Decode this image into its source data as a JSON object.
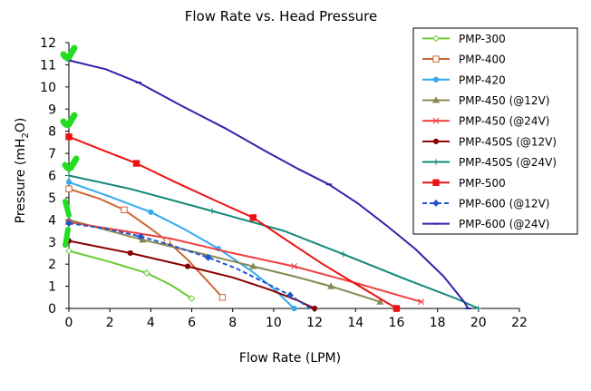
{
  "chart_data": {
    "type": "line",
    "title": "Flow Rate vs. Head Pressure",
    "xlabel": "Flow Rate (LPM)",
    "ylabel_main": "Pressure (mH",
    "ylabel_sub": "2",
    "ylabel_tail": "O)",
    "xlim": [
      0,
      22
    ],
    "ylim": [
      0,
      12
    ],
    "xticks": [
      "0",
      "2",
      "4",
      "6",
      "8",
      "10",
      "12",
      "14",
      "16",
      "18",
      "20",
      "22"
    ],
    "yticks": [
      "0",
      "1",
      "2",
      "3",
      "4",
      "5",
      "6",
      "7",
      "8",
      "9",
      "10",
      "11",
      "12"
    ],
    "grid": false,
    "legend_position": "right",
    "series": [
      {
        "name": "PMP-300",
        "color": "#66CC33",
        "marker": "diamond-open",
        "dashed": false,
        "points": [
          [
            0.0,
            2.6
          ],
          [
            2.0,
            2.1
          ],
          [
            3.8,
            1.6
          ],
          [
            5.0,
            1.05
          ],
          [
            6.0,
            0.45
          ]
        ],
        "marked": [
          0,
          2,
          4
        ]
      },
      {
        "name": "PMP-400",
        "color": "#CC6633",
        "marker": "square-open",
        "dashed": false,
        "points": [
          [
            0.0,
            5.4
          ],
          [
            1.5,
            4.95
          ],
          [
            2.7,
            4.45
          ],
          [
            4.0,
            3.6
          ],
          [
            4.8,
            3.05
          ],
          [
            5.8,
            2.2
          ],
          [
            6.6,
            1.4
          ],
          [
            7.1,
            0.9
          ],
          [
            7.5,
            0.5
          ]
        ],
        "marked": [
          0,
          2,
          4,
          8
        ]
      },
      {
        "name": "PMP-420",
        "color": "#33AAEE",
        "marker": "circle",
        "dashed": false,
        "points": [
          [
            0.0,
            5.7
          ],
          [
            2.0,
            5.05
          ],
          [
            4.0,
            4.35
          ],
          [
            5.6,
            3.6
          ],
          [
            7.3,
            2.7
          ],
          [
            8.9,
            1.7
          ],
          [
            10.0,
            0.9
          ],
          [
            10.6,
            0.35
          ],
          [
            11.0,
            0.0
          ]
        ],
        "marked": [
          0,
          2,
          4,
          8
        ]
      },
      {
        "name": "PMP-450 (@12V)",
        "color": "#888855",
        "marker": "triangle",
        "dashed": false,
        "points": [
          [
            0.0,
            4.0
          ],
          [
            3.6,
            3.1
          ],
          [
            6.8,
            2.4
          ],
          [
            9.0,
            1.9
          ],
          [
            11.0,
            1.45
          ],
          [
            12.8,
            1.0
          ],
          [
            15.2,
            0.3
          ]
        ],
        "marked": [
          0,
          1,
          3,
          5,
          6
        ]
      },
      {
        "name": "PMP-450 (@24V)",
        "color": "#F04040",
        "marker": "star",
        "dashed": false,
        "points": [
          [
            0.0,
            3.9
          ],
          [
            5.0,
            3.15
          ],
          [
            8.0,
            2.5
          ],
          [
            11.0,
            1.9
          ],
          [
            14.0,
            1.15
          ],
          [
            17.2,
            0.3
          ]
        ],
        "marked": [
          0,
          3,
          5
        ]
      },
      {
        "name": "PMP-450S (@12V)",
        "color": "#880000",
        "marker": "circle",
        "dashed": false,
        "points": [
          [
            0.0,
            3.05
          ],
          [
            3.0,
            2.5
          ],
          [
            5.8,
            1.9
          ],
          [
            8.0,
            1.4
          ],
          [
            9.8,
            0.85
          ],
          [
            11.2,
            0.35
          ],
          [
            12.0,
            0.0
          ]
        ],
        "marked": [
          0,
          1,
          2,
          6
        ]
      },
      {
        "name": "PMP-450S (@24V)",
        "color": "#118877",
        "marker": "plus",
        "dashed": false,
        "points": [
          [
            0.0,
            6.0
          ],
          [
            3.0,
            5.4
          ],
          [
            7.0,
            4.4
          ],
          [
            10.5,
            3.5
          ],
          [
            13.4,
            2.45
          ],
          [
            16.5,
            1.3
          ],
          [
            18.9,
            0.45
          ],
          [
            20.0,
            0.0
          ]
        ],
        "marked": [
          0,
          2,
          4,
          7
        ]
      },
      {
        "name": "PMP-500",
        "color": "#EE1111",
        "marker": "square",
        "dashed": false,
        "points": [
          [
            0.0,
            7.75
          ],
          [
            1.5,
            7.2
          ],
          [
            3.3,
            6.55
          ],
          [
            5.2,
            5.7
          ],
          [
            7.2,
            4.85
          ],
          [
            9.0,
            4.1
          ],
          [
            10.6,
            3.1
          ],
          [
            12.4,
            2.0
          ],
          [
            14.2,
            1.0
          ],
          [
            16.0,
            0.0
          ]
        ],
        "marked": [
          0,
          2,
          5,
          9
        ]
      },
      {
        "name": "PMP-600 (@12V)",
        "color": "#2255CC",
        "marker": "diamond",
        "dashed": true,
        "points": [
          [
            0.0,
            3.85
          ],
          [
            1.8,
            3.6
          ],
          [
            3.5,
            3.25
          ],
          [
            5.0,
            2.85
          ],
          [
            6.8,
            2.3
          ],
          [
            8.2,
            1.8
          ],
          [
            9.5,
            1.2
          ],
          [
            10.8,
            0.6
          ],
          [
            11.8,
            0.0
          ]
        ],
        "marked": [
          0,
          2,
          4,
          7
        ]
      },
      {
        "name": "PMP-600 (@24V)",
        "color": "#3322AA",
        "marker": "dash",
        "dashed": false,
        "points": [
          [
            0.0,
            11.2
          ],
          [
            1.8,
            10.8
          ],
          [
            3.4,
            10.2
          ],
          [
            5.5,
            9.15
          ],
          [
            7.7,
            8.1
          ],
          [
            9.6,
            7.1
          ],
          [
            11.2,
            6.3
          ],
          [
            12.7,
            5.6
          ],
          [
            14.1,
            4.75
          ],
          [
            15.5,
            3.75
          ],
          [
            16.9,
            2.7
          ],
          [
            18.3,
            1.45
          ],
          [
            19.3,
            0.3
          ],
          [
            19.5,
            0.0
          ]
        ],
        "marked": [
          0,
          2,
          7,
          13
        ]
      }
    ]
  }
}
